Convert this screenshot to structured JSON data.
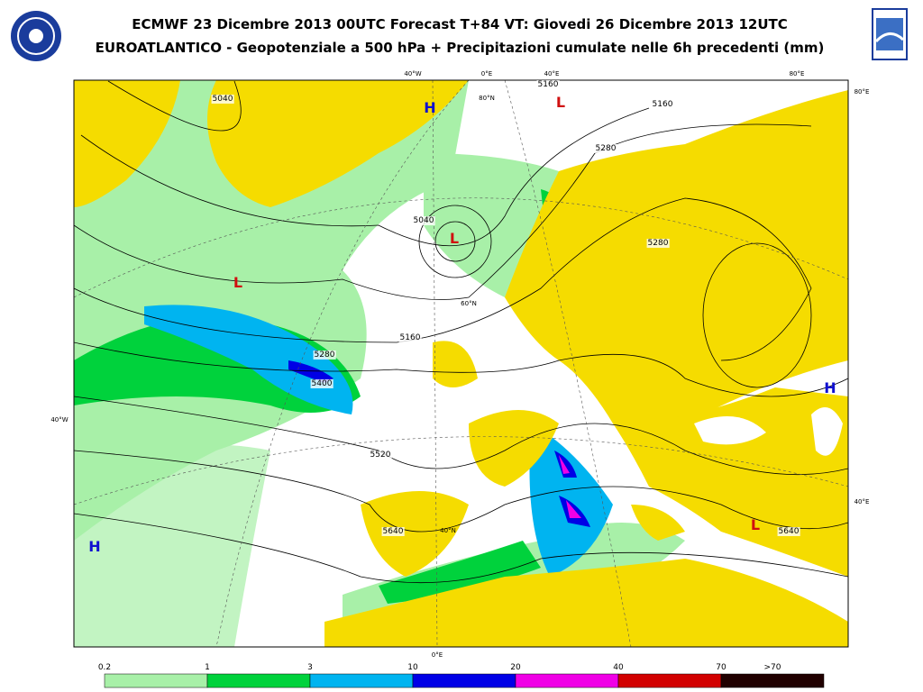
{
  "header": {
    "title": "ECMWF 23 Dicembre 2013 00UTC Forecast T+84 VT: Giovedi 26 Dicembre 2013 12UTC",
    "subtitle": "EUROATLANTICO - Geopotenziale a 500 hPa + Precipitazioni cumulate nelle 6h precedenti (mm)"
  },
  "map": {
    "grid_labels": [
      "40°W",
      "0°E",
      "40°E",
      "80°E",
      "80°E",
      "40°W",
      "40°E",
      "0°E",
      "80°N",
      "60°N",
      "40°N"
    ],
    "contour_labels": [
      "5160",
      "5160",
      "5280",
      "5040",
      "5160",
      "5280",
      "5400",
      "5520",
      "5640",
      "5640",
      "5280",
      "5040"
    ],
    "centers": [
      {
        "text": "H",
        "color": "#1010d0"
      },
      {
        "text": "L",
        "color": "#d01010"
      },
      {
        "text": "L",
        "color": "#d01010"
      },
      {
        "text": "L",
        "color": "#d01010"
      },
      {
        "text": "H",
        "color": "#1010d0"
      },
      {
        "text": "H",
        "color": "#1010d0"
      },
      {
        "text": "L",
        "color": "#d01010"
      }
    ]
  },
  "legend": {
    "labels": [
      "0.2",
      "1",
      "3",
      "10",
      "20",
      "40",
      "70",
      ">70"
    ],
    "colors": [
      "#a8f0a8",
      "#00d23c",
      "#00b4f0",
      "#0000e6",
      "#f000e6",
      "#d20000",
      "#200000"
    ]
  }
}
